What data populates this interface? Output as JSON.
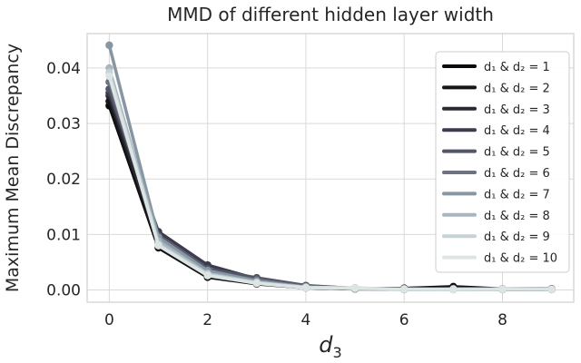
{
  "chart_data": {
    "type": "line",
    "title": "MMD of different hidden layer width",
    "xlabel": "d",
    "xlabel_sub": "3",
    "ylabel": "Maximum Mean Discrepancy",
    "x": [
      0,
      1,
      2,
      3,
      4,
      5,
      6,
      7,
      8,
      9
    ],
    "xlim": [
      -0.45,
      9.45
    ],
    "ylim": [
      -0.0022,
      0.0462
    ],
    "xticks": [
      0,
      2,
      4,
      6,
      8
    ],
    "xtick_labels": [
      "0",
      "2",
      "4",
      "6",
      "8"
    ],
    "yticks": [
      0.0,
      0.01,
      0.02,
      0.03,
      0.04
    ],
    "ytick_labels": [
      "0.00",
      "0.01",
      "0.02",
      "0.03",
      "0.04"
    ],
    "grid": true,
    "legend_position": "right",
    "series": [
      {
        "name": "d₁ & d₂ = 1",
        "color": "#0b0b0f",
        "values": [
          0.0332,
          0.0076,
          0.0023,
          0.0011,
          0.0004,
          0.0002,
          0.0003,
          0.0006,
          0.0002,
          0.0002
        ]
      },
      {
        "name": "d₁ & d₂ = 2",
        "color": "#161619",
        "values": [
          0.034,
          0.0078,
          0.0024,
          0.0012,
          0.0004,
          0.0002,
          0.0003,
          0.0004,
          0.0001,
          0.0001
        ]
      },
      {
        "name": "d₁ & d₂ = 3",
        "color": "#2a2a33",
        "values": [
          0.035,
          0.0085,
          0.003,
          0.0015,
          0.0005,
          0.0003,
          0.0002,
          0.0002,
          0.0001,
          0.0001
        ]
      },
      {
        "name": "d₁ & d₂ = 4",
        "color": "#3d3c4e",
        "values": [
          0.0355,
          0.0105,
          0.0045,
          0.002,
          0.0007,
          0.0003,
          0.0002,
          0.0001,
          0.0001,
          0.0001
        ]
      },
      {
        "name": "d₁ & d₂ = 5",
        "color": "#535668",
        "values": [
          0.0362,
          0.0098,
          0.0038,
          0.0022,
          0.0008,
          0.0003,
          0.0002,
          0.0002,
          0.0001,
          0.0002
        ]
      },
      {
        "name": "d₁ & d₂ = 6",
        "color": "#6d7281",
        "values": [
          0.0375,
          0.009,
          0.0033,
          0.0018,
          0.0006,
          0.0002,
          0.0001,
          0.0001,
          0.0001,
          0.0001
        ]
      },
      {
        "name": "d₁ & d₂ = 7",
        "color": "#8796a3",
        "values": [
          0.0441,
          0.0095,
          0.0035,
          0.0016,
          0.0005,
          0.0002,
          0.0001,
          0.0001,
          0.0001,
          0.0002
        ]
      },
      {
        "name": "d₁ & d₂ = 8",
        "color": "#a7b6bf",
        "values": [
          0.04,
          0.0088,
          0.003,
          0.0014,
          0.0004,
          0.0003,
          0.0001,
          0.0001,
          0.0002,
          0.0001
        ]
      },
      {
        "name": "d₁ & d₂ = 9",
        "color": "#c5d2d6",
        "values": [
          0.0392,
          0.0082,
          0.0028,
          0.0013,
          0.0005,
          0.0004,
          0.0001,
          0.0002,
          0.0002,
          0.0001
        ]
      },
      {
        "name": "d₁ & d₂ = 10",
        "color": "#dce5e4",
        "values": [
          0.0385,
          0.008,
          0.0026,
          0.0012,
          0.0004,
          0.0003,
          0.0002,
          0.0001,
          0.0001,
          0.0001
        ]
      }
    ]
  }
}
